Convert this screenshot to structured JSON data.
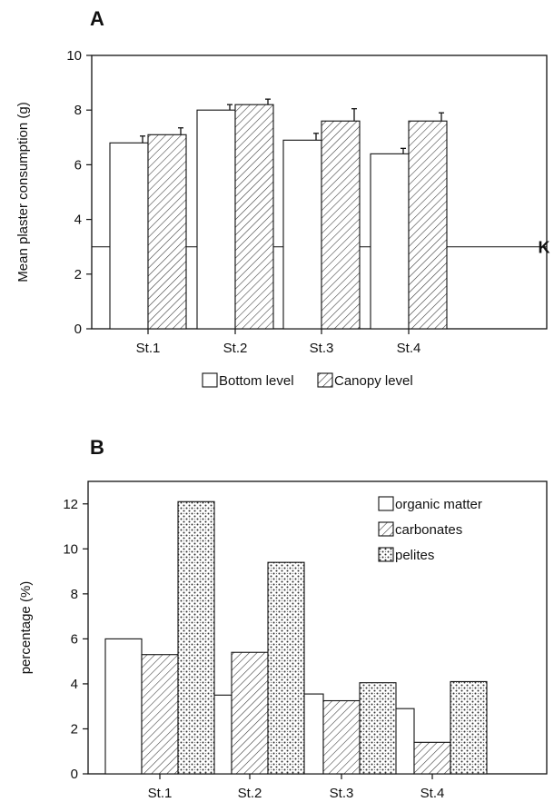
{
  "chart_data": [
    {
      "panel": "A",
      "type": "bar",
      "categories": [
        "St.1",
        "St.2",
        "St.3",
        "St.4"
      ],
      "series": [
        {
          "name": "Bottom level",
          "values": [
            6.8,
            8.0,
            6.9,
            6.4
          ],
          "errors": [
            0.25,
            0.2,
            0.25,
            0.2
          ],
          "pattern": "white"
        },
        {
          "name": "Canopy level",
          "values": [
            7.1,
            8.2,
            7.6,
            7.6
          ],
          "errors": [
            0.25,
            0.2,
            0.45,
            0.3
          ],
          "pattern": "hatch"
        }
      ],
      "reference_line": {
        "value": 3.0,
        "label": "K"
      },
      "ylabel": "Mean plaster consumption (g)",
      "xlabel": "",
      "ylim": [
        0,
        10
      ],
      "yticks": [
        0,
        2,
        4,
        6,
        8,
        10
      ],
      "legend_position": "bottom-center"
    },
    {
      "panel": "B",
      "type": "bar",
      "categories": [
        "St.1",
        "St.2",
        "St.3",
        "St.4"
      ],
      "series": [
        {
          "name": "organic matter",
          "values": [
            6.0,
            3.5,
            3.55,
            2.9
          ],
          "pattern": "white"
        },
        {
          "name": "carbonates",
          "values": [
            5.3,
            5.4,
            3.25,
            1.4
          ],
          "pattern": "hatch"
        },
        {
          "name": "pelites",
          "values": [
            12.1,
            9.4,
            4.05,
            4.1
          ],
          "pattern": "dots"
        }
      ],
      "ylabel": "percentage (%)",
      "xlabel": "",
      "ylim": [
        0,
        13
      ],
      "yticks": [
        0,
        2,
        4,
        6,
        8,
        10,
        12
      ],
      "legend_position": "top-right"
    }
  ]
}
